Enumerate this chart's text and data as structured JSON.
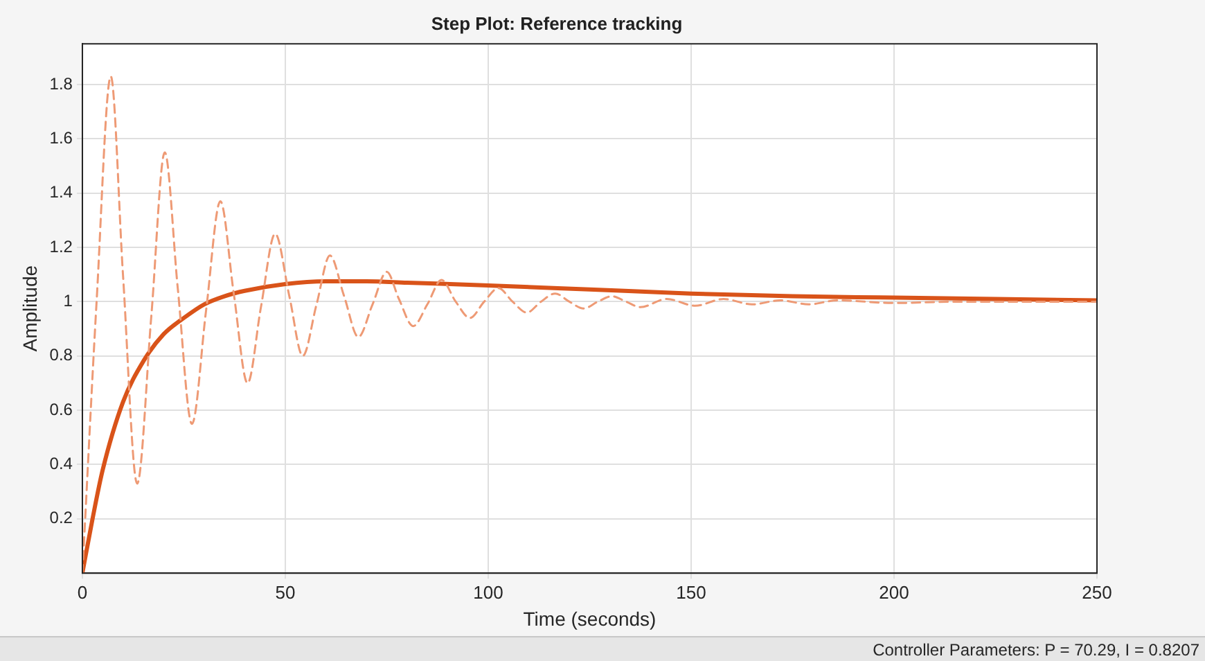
{
  "chart_data": {
    "type": "line",
    "title": "Step Plot: Reference tracking",
    "xlabel": "Time (seconds)",
    "ylabel": "Amplitude",
    "xlim": [
      0,
      250
    ],
    "xticks": [
      0,
      50,
      100,
      150,
      200,
      250
    ],
    "ylim": [
      0,
      1.95
    ],
    "yticks": [
      0.2,
      0.4,
      0.6,
      0.8,
      1,
      1.2,
      1.4,
      1.6,
      1.8
    ],
    "grid": true,
    "legend": false,
    "marker": "none",
    "annotations": [
      "Controller Parameters: P = 70.29, I = 0.8207"
    ],
    "series": [
      {
        "color": "#ee9a75",
        "line_style": "dashed",
        "x": [
          0,
          3.5,
          7,
          10,
          13.5,
          17,
          20.3,
          23.5,
          27,
          30.5,
          34,
          37.3,
          40.7,
          44,
          47.5,
          51,
          54.3,
          57.7,
          61,
          64.5,
          68,
          71.5,
          75,
          78,
          81.5,
          85,
          88.5,
          92,
          95.5,
          99,
          102.5,
          106,
          109.5,
          113,
          116.5,
          120,
          123.5,
          127,
          130.5,
          134,
          137.5,
          144,
          151,
          158,
          165,
          172,
          179,
          186,
          200,
          215,
          250
        ],
        "values": [
          0,
          1.0,
          1.83,
          1.1,
          0.33,
          0.95,
          1.55,
          1.05,
          0.55,
          0.97,
          1.37,
          1.03,
          0.7,
          0.98,
          1.25,
          1.02,
          0.8,
          0.99,
          1.17,
          1.02,
          0.87,
          0.99,
          1.11,
          1.01,
          0.91,
          0.99,
          1.08,
          1.0,
          0.94,
          1.0,
          1.05,
          1.0,
          0.96,
          1.0,
          1.03,
          1.0,
          0.975,
          1.0,
          1.02,
          1.0,
          0.98,
          1.01,
          0.985,
          1.01,
          0.99,
          1.005,
          0.99,
          1.005,
          0.995,
          1.0,
          1.0
        ]
      },
      {
        "color": "#d95319",
        "line_style": "solid",
        "x": [
          0,
          2.5,
          5,
          10,
          15,
          20,
          25,
          30,
          35,
          40,
          50,
          60,
          70,
          80,
          100,
          125,
          150,
          175,
          200,
          250
        ],
        "values": [
          0,
          0.2,
          0.38,
          0.63,
          0.78,
          0.88,
          0.94,
          0.99,
          1.02,
          1.04,
          1.065,
          1.075,
          1.075,
          1.07,
          1.06,
          1.045,
          1.03,
          1.02,
          1.015,
          1.005
        ]
      }
    ]
  }
}
